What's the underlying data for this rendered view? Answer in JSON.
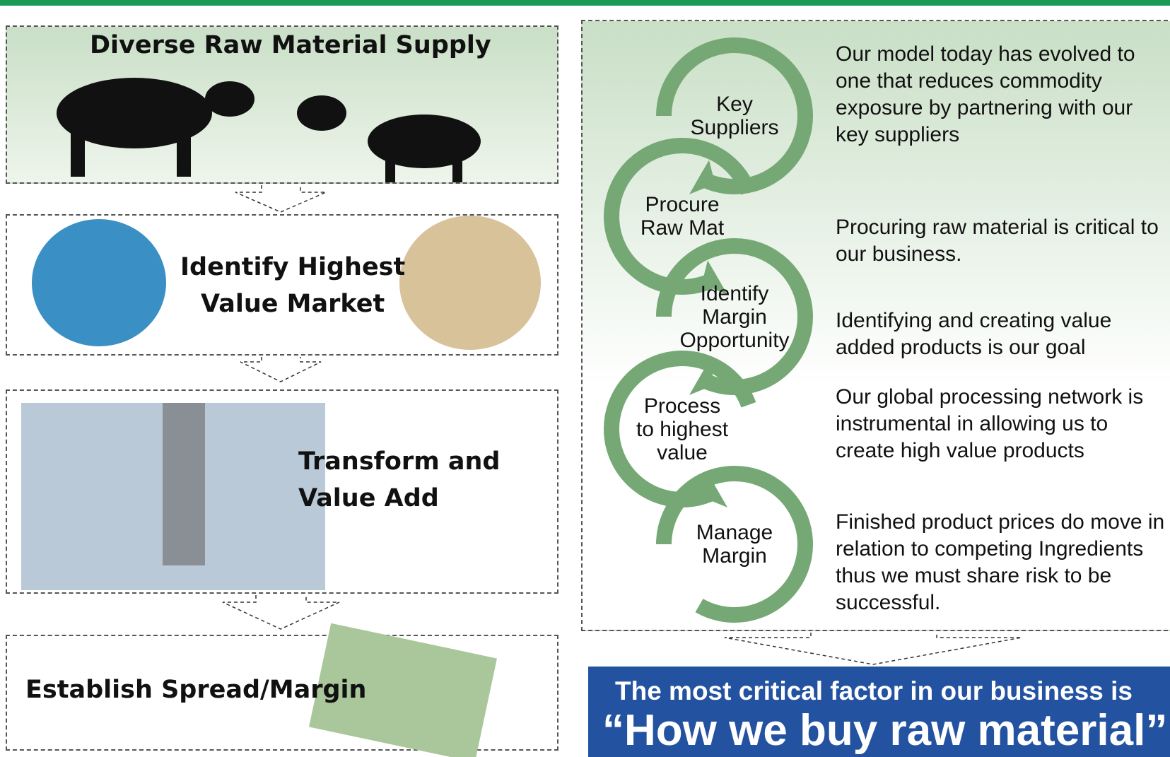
{
  "left_steps": [
    {
      "lines": [
        "Diverse Raw Material Supply"
      ]
    },
    {
      "lines": [
        "Identify Highest",
        "Value Market"
      ]
    },
    {
      "lines": [
        "Transform and",
        "Value Add"
      ]
    },
    {
      "lines": [
        "Establish Spread/Margin"
      ]
    }
  ],
  "cycle": [
    {
      "label": [
        "Key",
        "Suppliers"
      ],
      "description": "Our model today has evolved to one that reduces commodity exposure by partnering with our key suppliers"
    },
    {
      "label": [
        "Procure",
        "Raw Mat"
      ],
      "description": "Procuring raw material is critical to our business."
    },
    {
      "label": [
        "Identify",
        "Margin",
        "Opportunity"
      ],
      "description": "Identifying and creating value added products is our goal"
    },
    {
      "label": [
        "Process",
        "to highest",
        "value"
      ],
      "description": "Our global processing network is instrumental in allowing us to create high value products"
    },
    {
      "label": [
        "Manage",
        "Margin"
      ],
      "description": "Finished product prices do move in relation to competing Ingredients thus we must share risk to be successful."
    }
  ],
  "banner": {
    "line1": "The most critical factor in our business is",
    "line2": "“How we buy raw material”"
  }
}
